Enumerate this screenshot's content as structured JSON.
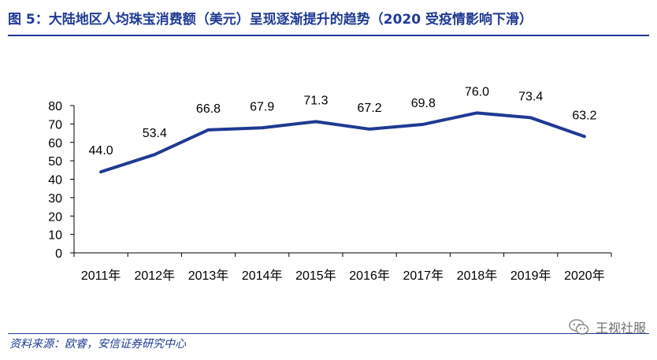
{
  "title": "图 5：大陆地区人均珠宝消费额（美元）呈现逐渐提升的趋势（2020 受疫情影响下滑）",
  "source": "资料来源：欧睿，安信证券研究中心",
  "watermark": {
    "text": "王视社服",
    "icon": "wechat-icon"
  },
  "colors": {
    "title": "#1f3a93",
    "line": "#1f3a93"
  },
  "chart_data": {
    "type": "line",
    "title": "大陆地区人均珠宝消费额（美元）",
    "xlabel": "",
    "ylabel": "",
    "categories": [
      "2011年",
      "2012年",
      "2013年",
      "2014年",
      "2015年",
      "2016年",
      "2017年",
      "2018年",
      "2019年",
      "2020年"
    ],
    "series": [
      {
        "name": "人均珠宝消费额（美元）",
        "values": [
          44.0,
          53.4,
          66.8,
          67.9,
          71.3,
          67.2,
          69.8,
          76.0,
          73.4,
          63.2
        ]
      }
    ],
    "ylim": [
      0,
      80
    ],
    "yticks": [
      0,
      10,
      20,
      30,
      40,
      50,
      60,
      70,
      80
    ],
    "grid": false,
    "legend": "none"
  }
}
